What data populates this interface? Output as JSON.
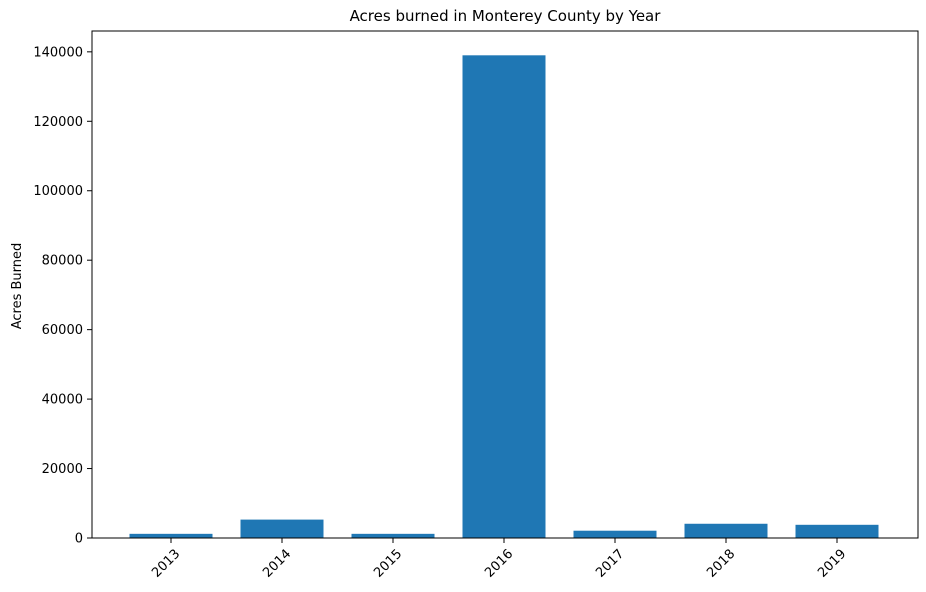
{
  "chart_data": {
    "type": "bar",
    "title": "Acres burned in Monterey County by Year",
    "xlabel": "",
    "ylabel": "Acres Burned",
    "categories": [
      "2013",
      "2014",
      "2015",
      "2016",
      "2017",
      "2018",
      "2019"
    ],
    "values": [
      1200,
      5300,
      1200,
      139000,
      2100,
      4100,
      3800
    ],
    "ylim": [
      0,
      146000
    ],
    "yticks": [
      0,
      20000,
      40000,
      60000,
      80000,
      100000,
      120000,
      140000
    ],
    "ytick_labels": [
      "0",
      "20000",
      "40000",
      "60000",
      "80000",
      "100000",
      "120000",
      "140000"
    ],
    "bar_color": "#1f77b4",
    "grid": false,
    "xtick_rotation": "45°"
  }
}
